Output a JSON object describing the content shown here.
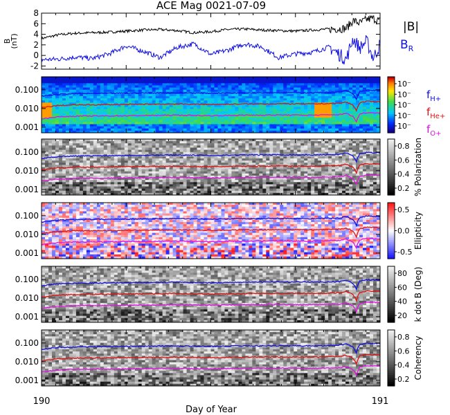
{
  "chart_data": {
    "title": "ACE Mag 0021-07-09",
    "xlabel": "Day of Year",
    "x_range": [
      190,
      191
    ],
    "x_ticks": [
      "190",
      "191"
    ],
    "panels": [
      {
        "type": "line",
        "ylabel": [
          "B",
          "(nT)"
        ],
        "ylim": [
          -2.6,
          8
        ],
        "yticks": [
          "8",
          "6",
          "4",
          "2",
          "0",
          "-2"
        ],
        "ytick_values": [
          8,
          6,
          4,
          2,
          0,
          -2
        ],
        "series": [
          {
            "name": "|B|",
            "color": "#000000",
            "x": [
              190.0,
              190.05,
              190.1,
              190.15,
              190.2,
              190.25,
              190.3,
              190.35,
              190.4,
              190.45,
              190.5,
              190.55,
              190.6,
              190.65,
              190.7,
              190.75,
              190.8,
              190.85,
              190.9,
              190.92,
              190.94,
              190.96,
              190.98,
              191.0
            ],
            "values": [
              3.2,
              3.9,
              4.2,
              4.3,
              4.4,
              4.6,
              4.8,
              4.9,
              4.7,
              4.3,
              4.5,
              4.9,
              5.0,
              4.8,
              4.7,
              4.6,
              4.8,
              5.0,
              5.1,
              6.6,
              6.1,
              6.8,
              7.0,
              6.5
            ]
          },
          {
            "name": "B_R",
            "color": "#1010e0",
            "x": [
              190.0,
              190.05,
              190.1,
              190.15,
              190.2,
              190.25,
              190.3,
              190.35,
              190.4,
              190.45,
              190.5,
              190.55,
              190.6,
              190.65,
              190.7,
              190.75,
              190.8,
              190.85,
              190.9,
              190.92,
              190.94,
              190.96,
              190.98,
              191.0
            ],
            "values": [
              -0.8,
              -0.7,
              -0.3,
              -0.6,
              0.3,
              1.8,
              0.8,
              -0.4,
              1.5,
              2.2,
              0.2,
              1.0,
              2.2,
              1.6,
              -0.4,
              0.3,
              0.6,
              1.6,
              -0.8,
              3.2,
              1.4,
              2.7,
              -0.5,
              2.0
            ]
          }
        ],
        "legend": [
          "|B|",
          "B_R"
        ]
      },
      {
        "type": "heatmap",
        "kind": "power",
        "yticks": [
          "0.100",
          "0.010",
          "0.001"
        ],
        "ytick_values": [
          0.1,
          0.01,
          0.001
        ],
        "ylim": [
          0.0005,
          0.5
        ],
        "colorbar": {
          "ticks": [
            "10⁻",
            "10⁻",
            "10⁻",
            "10⁻",
            "10⁻"
          ],
          "title": ""
        }
      },
      {
        "type": "heatmap",
        "kind": "gray",
        "yticks": [
          "0.100",
          "0.010",
          "0.001"
        ],
        "ytick_values": [
          0.1,
          0.01,
          0.001
        ],
        "ylim": [
          0.0005,
          0.5
        ],
        "colorbar": {
          "ticks": [
            "0.8",
            "0.6",
            "0.4",
            "0.2"
          ],
          "title": "% Polarization"
        }
      },
      {
        "type": "heatmap",
        "kind": "redblue",
        "yticks": [
          "0.100",
          "0.010",
          "0.001"
        ],
        "ytick_values": [
          0.1,
          0.01,
          0.001
        ],
        "ylim": [
          0.0005,
          0.5
        ],
        "colorbar": {
          "ticks": [
            "0.5",
            "0.0",
            "-0.5"
          ],
          "title": "Ellipticity"
        }
      },
      {
        "type": "heatmap",
        "kind": "gray",
        "yticks": [
          "0.100",
          "0.010",
          "0.001"
        ],
        "ytick_values": [
          0.1,
          0.01,
          0.001
        ],
        "ylim": [
          0.0005,
          0.5
        ],
        "colorbar": {
          "ticks": [
            "80",
            "60",
            "40",
            "20"
          ],
          "title": "k dot B (Deg)"
        }
      },
      {
        "type": "heatmap",
        "kind": "gray",
        "yticks": [
          "0.100",
          "0.010",
          "0.001"
        ],
        "ytick_values": [
          0.1,
          0.01,
          0.001
        ],
        "ylim": [
          0.0005,
          0.5
        ],
        "colorbar": {
          "ticks": [
            "0.8",
            "0.6",
            "0.4",
            "0.2"
          ],
          "title": "Coherency"
        }
      }
    ],
    "gyro_lines": {
      "x": [
        190.0,
        190.05,
        190.1,
        190.2,
        190.3,
        190.4,
        190.5,
        190.6,
        190.7,
        190.8,
        190.88,
        190.9,
        190.92,
        190.93,
        190.94,
        190.96,
        191.0
      ],
      "series": [
        {
          "name": "f_H+",
          "color": "#1010e0",
          "values": [
            0.045,
            0.058,
            0.062,
            0.065,
            0.068,
            0.07,
            0.066,
            0.07,
            0.072,
            0.07,
            0.075,
            0.09,
            0.06,
            0.03,
            0.08,
            0.095,
            0.092
          ]
        },
        {
          "name": "f_He+",
          "color": "#e01010",
          "values": [
            0.011,
            0.0145,
            0.0155,
            0.016,
            0.017,
            0.0175,
            0.0165,
            0.0175,
            0.018,
            0.0175,
            0.019,
            0.022,
            0.015,
            0.0075,
            0.02,
            0.024,
            0.023
          ]
        },
        {
          "name": "f_O+",
          "color": "#e010e0",
          "values": [
            0.0028,
            0.0036,
            0.0039,
            0.004,
            0.0042,
            0.0044,
            0.0041,
            0.0044,
            0.0045,
            0.0044,
            0.0047,
            0.0055,
            0.0037,
            0.0019,
            0.005,
            0.006,
            0.0058
          ]
        }
      ],
      "legend": [
        "f_H+",
        "f_He+",
        "f_O+"
      ]
    }
  }
}
